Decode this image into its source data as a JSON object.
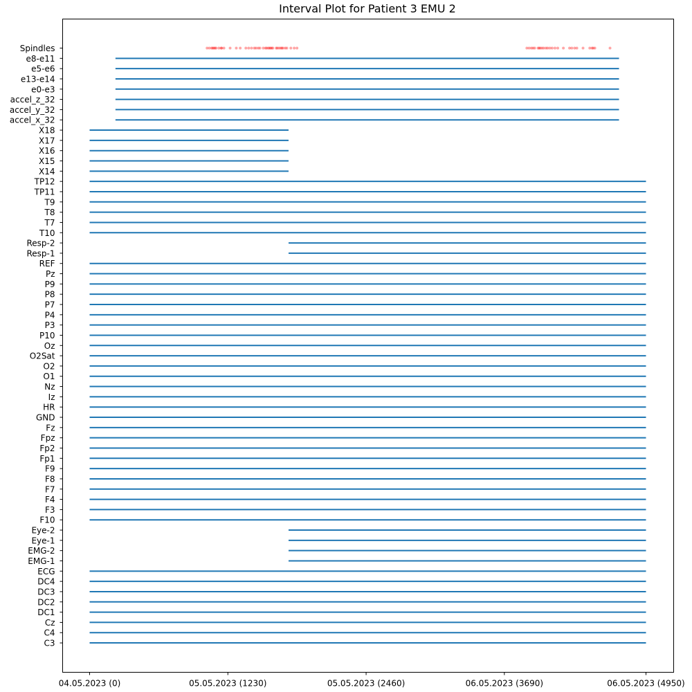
{
  "chart_data": {
    "type": "interval",
    "title": "Interval Plot for Patient 3 EMU 2",
    "xlabel": "",
    "ylabel": "",
    "xlim": [
      -235,
      5180
    ],
    "grid": false,
    "xticks": [
      {
        "value": 0,
        "label": "04.05.2023 (0)"
      },
      {
        "value": 1230,
        "label": "05.05.2023 (1230)"
      },
      {
        "value": 2460,
        "label": "05.05.2023 (2460)"
      },
      {
        "value": 3690,
        "label": "06.05.2023 (3690)"
      },
      {
        "value": 4950,
        "label": "06.05.2023 (4950)"
      }
    ],
    "interval_color": "#1f77b4",
    "event_color": "#ff0000",
    "rows": [
      {
        "label": "Spindles",
        "type": "events",
        "x": [
          1045,
          1065,
          1085,
          1095,
          1105,
          1115,
          1125,
          1150,
          1170,
          1175,
          1195,
          1250,
          1305,
          1340,
          1390,
          1415,
          1440,
          1465,
          1480,
          1500,
          1515,
          1545,
          1565,
          1575,
          1590,
          1600,
          1610,
          1620,
          1630,
          1660,
          1670,
          1685,
          1700,
          1710,
          1720,
          1740,
          1755,
          1790,
          1820,
          1845,
          3890,
          3910,
          3930,
          3945,
          3960,
          3990,
          4000,
          4010,
          4025,
          4040,
          4060,
          4075,
          4095,
          4115,
          4140,
          4165,
          4215,
          4270,
          4290,
          4315,
          4335,
          4390,
          4450,
          4470,
          4480,
          4495,
          4630
        ]
      },
      {
        "label": "e8-e11",
        "start": 230,
        "end": 4710
      },
      {
        "label": "e5-e6",
        "start": 230,
        "end": 4710
      },
      {
        "label": "e13-e14",
        "start": 230,
        "end": 4710
      },
      {
        "label": "e0-e3",
        "start": 230,
        "end": 4710
      },
      {
        "label": "accel_z_32",
        "start": 230,
        "end": 4710
      },
      {
        "label": "accel_y_32",
        "start": 230,
        "end": 4710
      },
      {
        "label": "accel_x_32",
        "start": 230,
        "end": 4710
      },
      {
        "label": "X18",
        "start": 0,
        "end": 1770
      },
      {
        "label": "X17",
        "start": 0,
        "end": 1770
      },
      {
        "label": "X16",
        "start": 0,
        "end": 1770
      },
      {
        "label": "X15",
        "start": 0,
        "end": 1770
      },
      {
        "label": "X14",
        "start": 0,
        "end": 1770
      },
      {
        "label": "TP12",
        "start": 0,
        "end": 4950
      },
      {
        "label": "TP11",
        "start": 0,
        "end": 4950
      },
      {
        "label": "T9",
        "start": 0,
        "end": 4950
      },
      {
        "label": "T8",
        "start": 0,
        "end": 4950
      },
      {
        "label": "T7",
        "start": 0,
        "end": 4950
      },
      {
        "label": "T10",
        "start": 0,
        "end": 4950
      },
      {
        "label": "Resp-2",
        "start": 1770,
        "end": 4950
      },
      {
        "label": "Resp-1",
        "start": 1770,
        "end": 4950
      },
      {
        "label": "REF",
        "start": 0,
        "end": 4950
      },
      {
        "label": "Pz",
        "start": 0,
        "end": 4950
      },
      {
        "label": "P9",
        "start": 0,
        "end": 4950
      },
      {
        "label": "P8",
        "start": 0,
        "end": 4950
      },
      {
        "label": "P7",
        "start": 0,
        "end": 4950
      },
      {
        "label": "P4",
        "start": 0,
        "end": 4950
      },
      {
        "label": "P3",
        "start": 0,
        "end": 4950
      },
      {
        "label": "P10",
        "start": 0,
        "end": 4950
      },
      {
        "label": "Oz",
        "start": 0,
        "end": 4950
      },
      {
        "label": "O2Sat",
        "start": 0,
        "end": 4950
      },
      {
        "label": "O2",
        "start": 0,
        "end": 4950
      },
      {
        "label": "O1",
        "start": 0,
        "end": 4950
      },
      {
        "label": "Nz",
        "start": 0,
        "end": 4950
      },
      {
        "label": "Iz",
        "start": 0,
        "end": 4950
      },
      {
        "label": "HR",
        "start": 0,
        "end": 4950
      },
      {
        "label": "GND",
        "start": 0,
        "end": 4950
      },
      {
        "label": "Fz",
        "start": 0,
        "end": 4950
      },
      {
        "label": "Fpz",
        "start": 0,
        "end": 4950
      },
      {
        "label": "Fp2",
        "start": 0,
        "end": 4950
      },
      {
        "label": "Fp1",
        "start": 0,
        "end": 4950
      },
      {
        "label": "F9",
        "start": 0,
        "end": 4950
      },
      {
        "label": "F8",
        "start": 0,
        "end": 4950
      },
      {
        "label": "F7",
        "start": 0,
        "end": 4950
      },
      {
        "label": "F4",
        "start": 0,
        "end": 4950
      },
      {
        "label": "F3",
        "start": 0,
        "end": 4950
      },
      {
        "label": "F10",
        "start": 0,
        "end": 4950
      },
      {
        "label": "Eye-2",
        "start": 1770,
        "end": 4950
      },
      {
        "label": "Eye-1",
        "start": 1770,
        "end": 4950
      },
      {
        "label": "EMG-2",
        "start": 1770,
        "end": 4950
      },
      {
        "label": "EMG-1",
        "start": 1770,
        "end": 4950
      },
      {
        "label": "ECG",
        "start": 0,
        "end": 4950
      },
      {
        "label": "DC4",
        "start": 0,
        "end": 4950
      },
      {
        "label": "DC3",
        "start": 0,
        "end": 4950
      },
      {
        "label": "DC2",
        "start": 0,
        "end": 4950
      },
      {
        "label": "DC1",
        "start": 0,
        "end": 4950
      },
      {
        "label": "Cz",
        "start": 0,
        "end": 4950
      },
      {
        "label": "C4",
        "start": 0,
        "end": 4950
      },
      {
        "label": "C3",
        "start": 0,
        "end": 4950
      }
    ]
  }
}
